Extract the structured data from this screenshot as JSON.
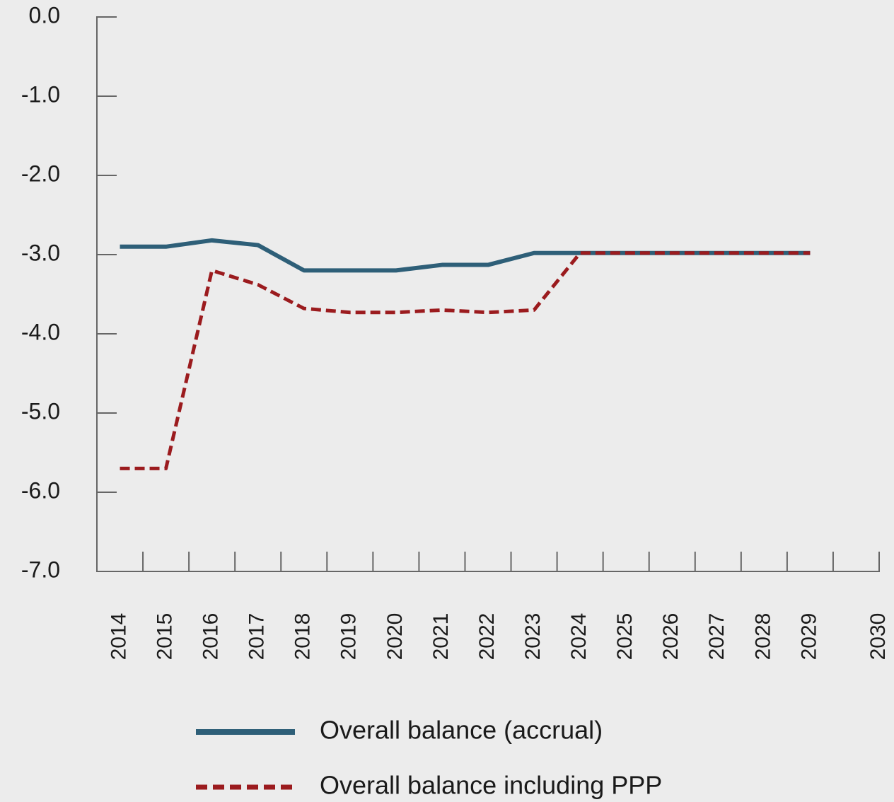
{
  "chart_data": {
    "type": "line",
    "categories": [
      "2014",
      "2015",
      "2016",
      "2017",
      "2018",
      "2019",
      "2020",
      "2021",
      "2022",
      "2023",
      "2024",
      "2025",
      "2026",
      "2027",
      "2028",
      "2029",
      "2030"
    ],
    "series": [
      {
        "name": "Overall balance (accrual)",
        "color": "#2e5f78",
        "dash": false,
        "values": [
          -2.9,
          -2.9,
          -2.82,
          -2.88,
          -3.2,
          -3.2,
          -3.2,
          -3.13,
          -3.13,
          -2.98,
          -2.98,
          -2.98,
          -2.98,
          -2.98,
          -2.98,
          -2.98,
          null
        ]
      },
      {
        "name": "Overall balance including PPP",
        "color": "#9b1b1e",
        "dash": true,
        "values": [
          -5.7,
          -5.7,
          -3.2,
          -3.38,
          -3.68,
          -3.73,
          -3.73,
          -3.7,
          -3.73,
          -3.7,
          -2.98,
          -2.98,
          -2.98,
          -2.98,
          -2.98,
          -2.98,
          null
        ]
      }
    ],
    "ylim": [
      -7,
      0
    ],
    "yticks": [
      {
        "value": 0,
        "label": "0.0"
      },
      {
        "value": -1,
        "label": "-1.0"
      },
      {
        "value": -2,
        "label": "-2.0"
      },
      {
        "value": -3,
        "label": "-3.0"
      },
      {
        "value": -4,
        "label": "-4.0"
      },
      {
        "value": -5,
        "label": "-5.0"
      },
      {
        "value": -6,
        "label": "-6.0"
      },
      {
        "value": -7,
        "label": "-7.0"
      }
    ],
    "legend": "bottom"
  }
}
